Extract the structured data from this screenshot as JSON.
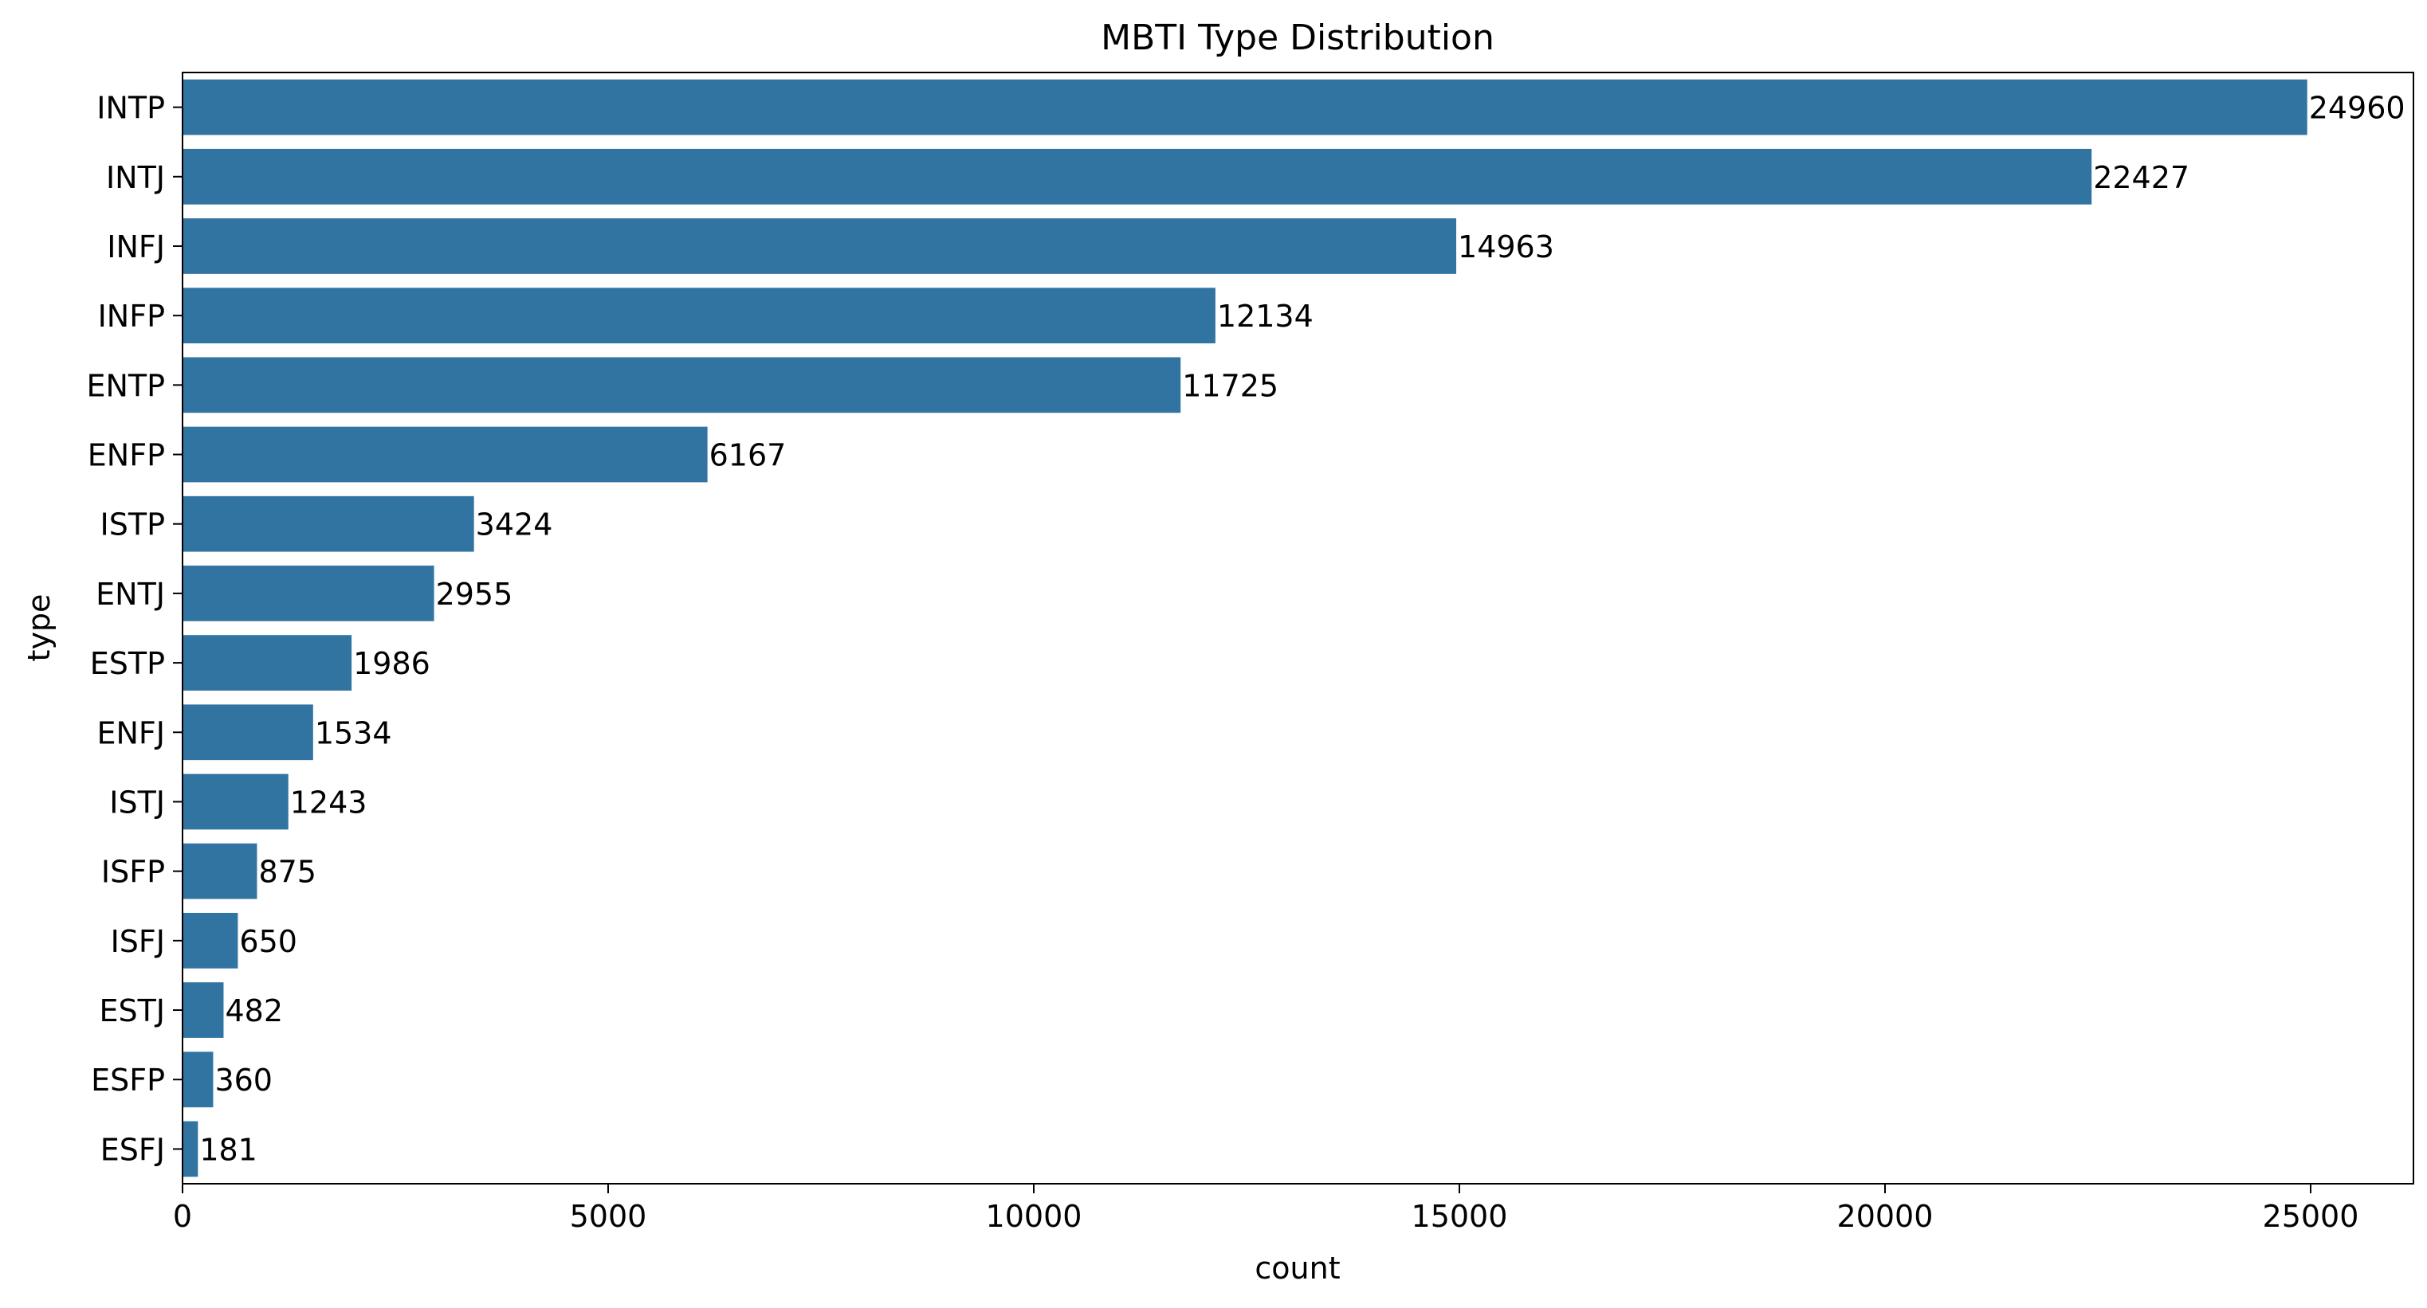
{
  "chart_data": {
    "type": "bar",
    "orientation": "horizontal",
    "title": "MBTI Type Distribution",
    "xlabel": "count",
    "ylabel": "type",
    "categories": [
      "INTP",
      "INTJ",
      "INFJ",
      "INFP",
      "ENTP",
      "ENFP",
      "ISTP",
      "ENTJ",
      "ESTP",
      "ENFJ",
      "ISTJ",
      "ISFP",
      "ISFJ",
      "ESTJ",
      "ESFP",
      "ESFJ"
    ],
    "values": [
      24960,
      22427,
      14963,
      12134,
      11725,
      6167,
      3424,
      2955,
      1986,
      1534,
      1243,
      875,
      650,
      482,
      360,
      181
    ],
    "data_labels": [
      "24960",
      "22427",
      "14963",
      "12134",
      "11725",
      "6167",
      "3424",
      "2955",
      "1986",
      "1534",
      "1243",
      "875",
      "650",
      "482",
      "360",
      "181"
    ],
    "xlim": [
      0,
      26208
    ],
    "x_ticks": [
      0,
      5000,
      10000,
      15000,
      20000,
      25000
    ],
    "x_tick_labels": [
      "0",
      "5000",
      "10000",
      "15000",
      "20000",
      "25000"
    ],
    "bar_color": "#3274a1",
    "grid": false,
    "legend": "none"
  }
}
